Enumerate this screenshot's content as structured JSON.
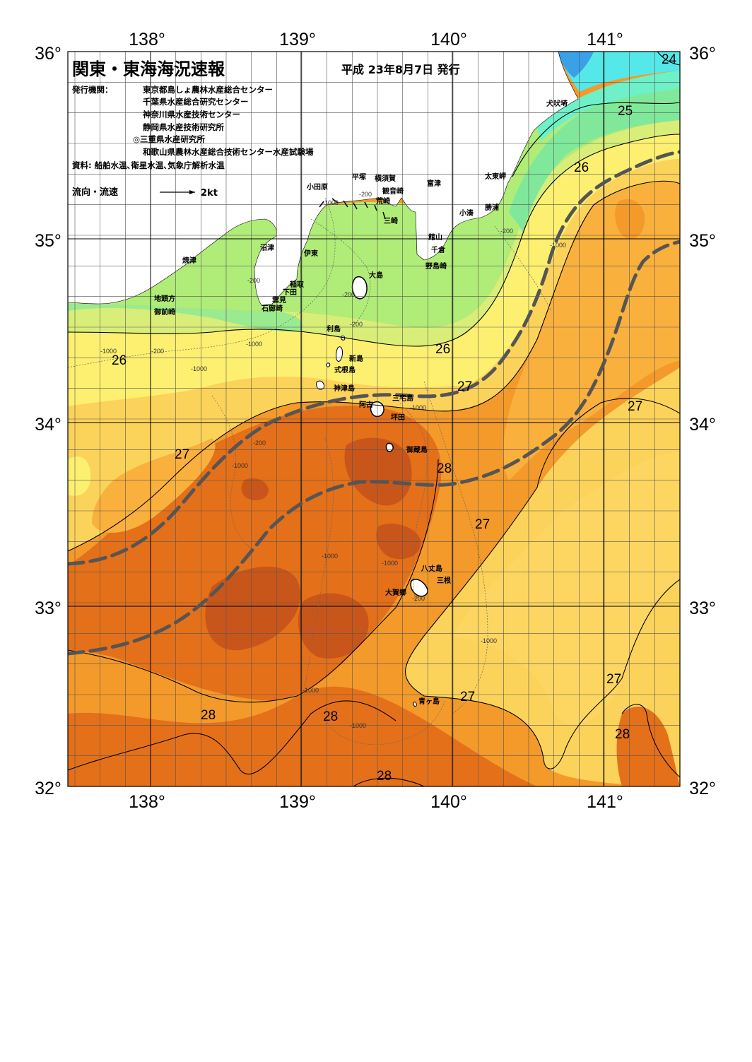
{
  "header": {
    "title": "関東・東海海況速報",
    "date": "平成 23年8月7日 発行",
    "issuer_label": "発行機関：",
    "issuers": [
      "東京都島しょ農林水産総合センター",
      "千葉県水産総合研究センター",
      "神奈川県水産技術センター",
      "静岡県水産技術研究所",
      "◎三重県水産研究所",
      "和歌山県農林水産総合技術センター水産試験場"
    ],
    "source": "資料: 船舶水温､衛星水温､気象庁解析水温",
    "flow_label": "流向・流速",
    "flow_scale": "2kt"
  },
  "axes": {
    "lon_labels": [
      "138°",
      "139°",
      "140°",
      "141°"
    ],
    "lat_labels": [
      "36°",
      "35°",
      "34°",
      "33°",
      "32°"
    ]
  },
  "places": {
    "inubosaki": "犬吠埼",
    "taitozaki": "太東岬",
    "katsuura": "勝浦",
    "kominato": "小湊",
    "tomitsu": "富津",
    "yokosuka": "横須賀",
    "kannonzaki": "観音崎",
    "arasaki": "荒崎",
    "misaki": "三崎",
    "hiratsuka": "平塚",
    "odawara": "小田原",
    "tateyama": "館山",
    "chikura": "千倉",
    "nojimazaki": "野島崎",
    "numazu": "沼津",
    "ito": "伊東",
    "yaizu": "焼津",
    "oshima": "大島",
    "inatori": "稲取",
    "shimoda": "下田",
    "kumomi": "雲見",
    "irozaki": "石廊崎",
    "jitoukata": "地頭方",
    "omaezaki": "御前崎",
    "toshima": "利島",
    "niijima": "新島",
    "shikinejima": "式根島",
    "kozushima": "神津島",
    "miyake": "三宅島",
    "ako": "阿古",
    "tsubota": "坪田",
    "mikurajima": "御蔵島",
    "hachijojima": "八丈島",
    "mitsune": "三根",
    "okago": "大賀郷",
    "aogashima": "青ヶ島"
  },
  "isotherms": {
    "t24": "24",
    "t25": "25",
    "t26a": "26",
    "t26b": "26",
    "t26c": "26",
    "t27a": "27",
    "t27b": "27",
    "t27c": "27",
    "t27d": "27",
    "t27e": "27",
    "t27f": "27",
    "t28a": "28",
    "t28b": "28",
    "t28c": "28",
    "t28d": "28",
    "t28e": "28"
  },
  "depth_labels": {
    "d200": "-200",
    "d1000": "-1000"
  },
  "colors": {
    "sst_24": "#55e8e8",
    "sst_24_5": "#6ef0c8",
    "sst_25": "#80e89a",
    "sst_25_5": "#b0ec78",
    "sst_26": "#d8ee78",
    "sst_26_5": "#fdf070",
    "sst_27": "#fcd35a",
    "sst_27_5": "#fab03c",
    "sst_28": "#f39a2a",
    "sst_28_5": "#e4701a",
    "sst_29": "#c8561a",
    "land": "#ffffff",
    "kuroshio_axis": "#555555"
  }
}
